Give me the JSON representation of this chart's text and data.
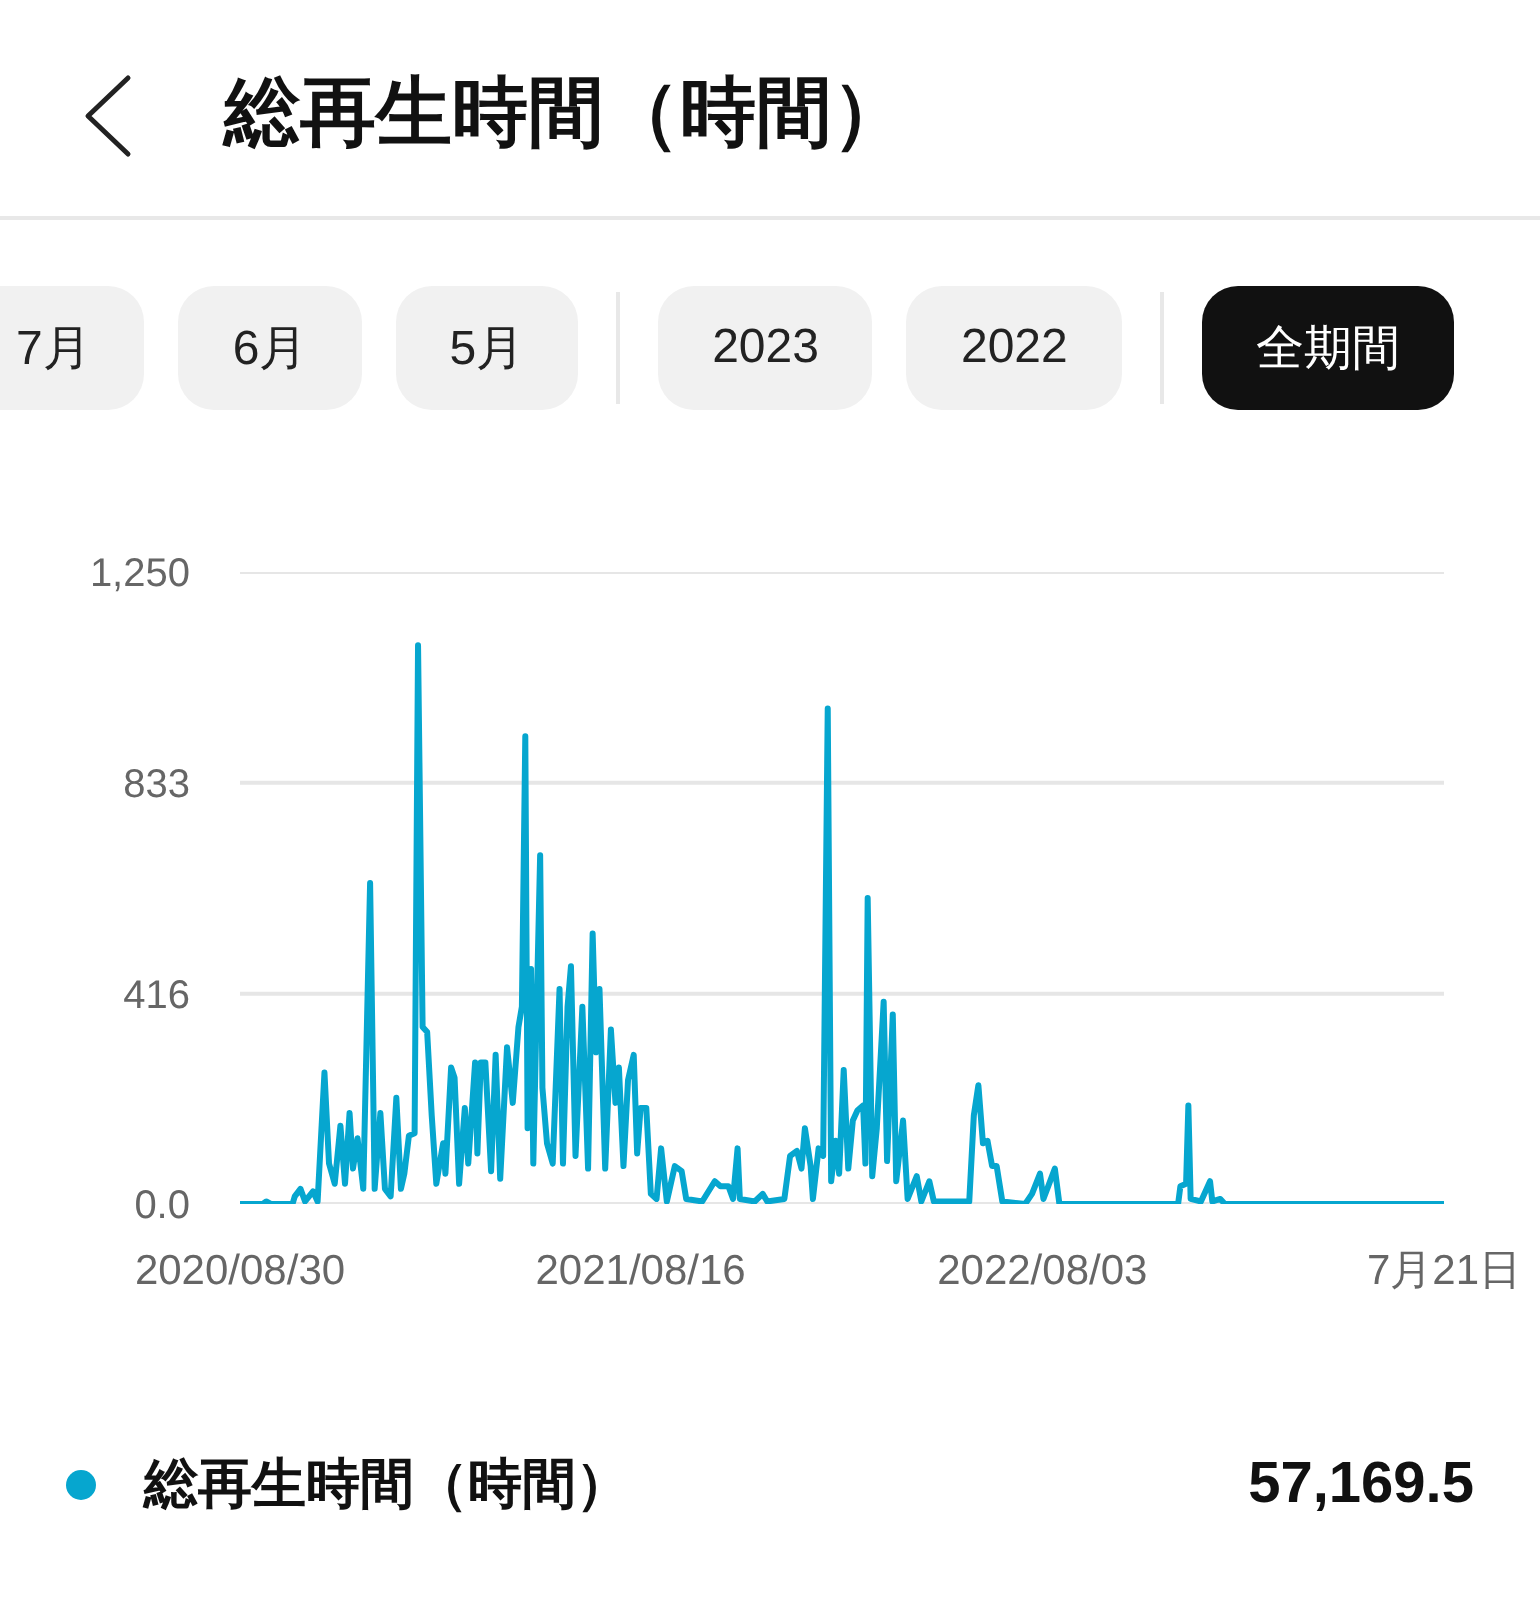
{
  "chart_data": {
    "type": "line",
    "title": "総再生時間（時間）",
    "annotations": [
      "7月",
      "6月",
      "5月",
      "2023",
      "2022",
      "全期間",
      "57,169.5"
    ],
    "x": [
      "2020-08-30",
      "2020-09-19",
      "2020-09-22",
      "2020-09-26",
      "2020-10-15",
      "2020-10-17",
      "2020-10-22",
      "2020-10-26",
      "2020-11-02",
      "2020-11-06",
      "2020-11-12",
      "2020-11-16",
      "2020-11-21",
      "2020-11-26",
      "2020-11-30",
      "2020-12-04",
      "2020-12-07",
      "2020-12-11",
      "2020-12-16",
      "2020-12-22",
      "2020-12-26",
      "2020-12-31",
      "2021-01-04",
      "2021-01-09",
      "2021-01-14",
      "2021-01-18",
      "2021-01-21",
      "2021-01-25",
      "2021-01-30",
      "2021-02-02",
      "2021-02-06",
      "2021-02-10",
      "2021-02-14",
      "2021-02-18",
      "2021-02-24",
      "2021-02-26",
      "2021-03-03",
      "2021-03-06",
      "2021-03-10",
      "2021-03-15",
      "2021-03-18",
      "2021-03-24",
      "2021-03-26",
      "2021-03-29",
      "2021-04-02",
      "2021-04-07",
      "2021-04-11",
      "2021-04-15",
      "2021-04-21",
      "2021-04-26",
      "2021-05-01",
      "2021-05-04",
      "2021-05-07",
      "2021-05-09",
      "2021-05-12",
      "2021-05-14",
      "2021-05-17",
      "2021-05-20",
      "2021-05-22",
      "2021-05-26",
      "2021-05-31",
      "2021-06-06",
      "2021-06-09",
      "2021-06-13",
      "2021-06-16",
      "2021-06-20",
      "2021-06-26",
      "2021-06-29",
      "2021-07-01",
      "2021-07-05",
      "2021-07-08",
      "2021-07-11",
      "2021-07-16",
      "2021-07-21",
      "2021-07-25",
      "2021-07-28",
      "2021-08-01",
      "2021-08-05",
      "2021-08-10",
      "2021-08-13",
      "2021-08-16",
      "2021-08-21",
      "2021-08-25",
      "2021-08-30",
      "2021-09-03",
      "2021-09-08",
      "2021-09-15",
      "2021-09-21",
      "2021-09-25",
      "2021-10-09",
      "2021-10-20",
      "2021-10-25",
      "2021-11-01",
      "2021-11-05",
      "2021-11-09",
      "2021-11-11",
      "2021-11-24",
      "2021-12-01",
      "2021-12-05",
      "2021-12-20",
      "2021-12-25",
      "2021-12-31",
      "2022-01-04",
      "2022-01-07",
      "2022-01-12",
      "2022-01-14",
      "2022-01-19",
      "2022-01-23",
      "2022-01-27",
      "2022-01-30",
      "2022-02-03",
      "2022-02-06",
      "2022-02-10",
      "2022-02-14",
      "2022-02-18",
      "2022-02-22",
      "2022-02-27",
      "2022-03-01",
      "2022-03-03",
      "2022-03-07",
      "2022-03-11",
      "2022-03-17",
      "2022-03-20",
      "2022-03-25",
      "2022-03-28",
      "2022-04-03",
      "2022-04-07",
      "2022-04-15",
      "2022-04-19",
      "2022-04-26",
      "2022-04-30",
      "2022-05-14",
      "2022-05-31",
      "2022-06-04",
      "2022-06-08",
      "2022-06-12",
      "2022-06-16",
      "2022-06-20",
      "2022-06-24",
      "2022-06-29",
      "2022-07-19",
      "2022-07-25",
      "2022-08-01",
      "2022-08-04",
      "2022-08-14",
      "2022-08-18",
      "2022-11-30",
      "2022-12-02",
      "2022-12-07",
      "2022-12-09",
      "2022-12-11",
      "2022-12-20",
      "2022-12-28",
      "2022-12-30",
      "2023-01-06",
      "2023-01-10",
      "2023-07-21"
    ],
    "series": [
      {
        "name": "総再生時間（時間）",
        "color": "#06a6cf",
        "values": [
          0,
          0,
          5,
          0,
          0,
          15,
          30,
          5,
          25,
          5,
          260,
          80,
          40,
          155,
          40,
          180,
          70,
          130,
          30,
          635,
          30,
          180,
          30,
          15,
          210,
          30,
          60,
          135,
          140,
          1105,
          350,
          340,
          175,
          40,
          120,
          60,
          270,
          250,
          40,
          190,
          80,
          280,
          100,
          280,
          280,
          65,
          295,
          50,
          310,
          200,
          350,
          390,
          925,
          150,
          465,
          80,
          390,
          690,
          230,
          120,
          80,
          425,
          80,
          390,
          470,
          95,
          390,
          200,
          70,
          535,
          300,
          425,
          70,
          345,
          200,
          270,
          75,
          245,
          295,
          100,
          190,
          190,
          20,
          10,
          110,
          5,
          75,
          65,
          10,
          5,
          45,
          35,
          35,
          10,
          110,
          10,
          5,
          20,
          5,
          10,
          95,
          105,
          70,
          150,
          75,
          10,
          110,
          95,
          980,
          45,
          125,
          60,
          265,
          70,
          165,
          185,
          195,
          80,
          605,
          55,
          150,
          400,
          85,
          375,
          45,
          165,
          10,
          55,
          5,
          45,
          5,
          5,
          5,
          175,
          235,
          120,
          125,
          75,
          75,
          5,
          0,
          20,
          60,
          10,
          70,
          0,
          0,
          35,
          40,
          195,
          10,
          5,
          45,
          5,
          10,
          0,
          0
        ]
      }
    ],
    "xlim": [
      "2020-08-30",
      "2023-07-21"
    ],
    "xticks": [
      {
        "value": "2020-08-30",
        "label": "2020/08/30"
      },
      {
        "value": "2021-08-16",
        "label": "2021/08/16"
      },
      {
        "value": "2022-08-03",
        "label": "2022/08/03"
      },
      {
        "value": "2023-07-21",
        "label": "7月21日"
      }
    ],
    "ylim": [
      0,
      1250
    ],
    "yticks": [
      {
        "value": 0,
        "label": "0.0"
      },
      416,
      833,
      {
        "value": 1250,
        "label": "1,250"
      }
    ],
    "grid": "y",
    "legend": "bottom"
  }
}
